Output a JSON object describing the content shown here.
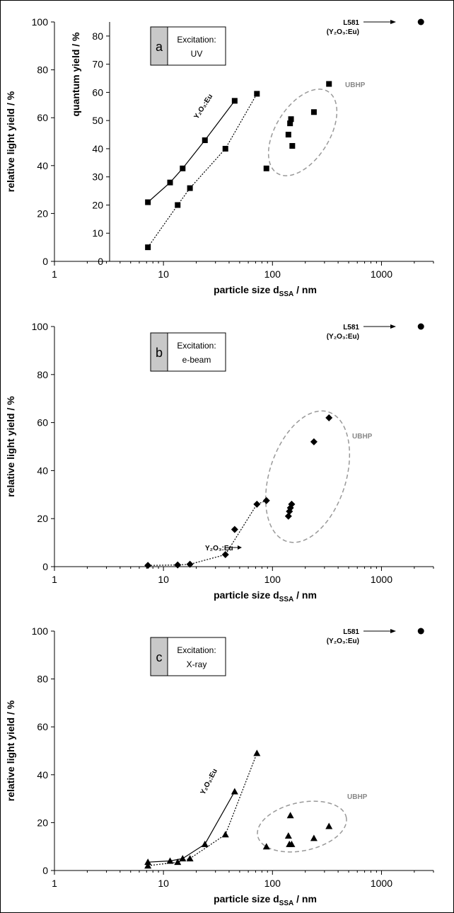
{
  "chart_data": [
    {
      "panel": "a",
      "type": "scatter",
      "xlabel": "particle size d_SSA / nm",
      "xlabel_main": "particle size d",
      "xlabel_sub": "SSA",
      "xlabel_tail": " / nm",
      "ylabel": "relative light yield / %",
      "ylabel2": "quantum yield / %",
      "x_scale": "log",
      "xlim": [
        1,
        3000
      ],
      "ylim": [
        0,
        100
      ],
      "ylim2": [
        0,
        85
      ],
      "x_ticks": [
        "1",
        "10",
        "100",
        "1000"
      ],
      "y_ticks": [
        "0",
        "20",
        "40",
        "60",
        "80",
        "100"
      ],
      "y2_ticks": [
        "0",
        "10",
        "20",
        "30",
        "40",
        "50",
        "60",
        "70",
        "80"
      ],
      "box_letter": "a",
      "box_title": "Excitation:",
      "box_value": "UV",
      "reference_label": "L581",
      "reference_sub": "(Y₂O₃:Eu)",
      "reference_point": {
        "x": 2300,
        "y": 100
      },
      "group_label": "UBHP",
      "series_label": "Y₂O₃:Eu",
      "series": [
        {
          "style": "solid",
          "marker": "square",
          "axis": "quantum",
          "x": [
            7.2,
            11.5,
            15,
            24,
            45
          ],
          "y": [
            21,
            28,
            33,
            43,
            57
          ]
        },
        {
          "style": "dotted",
          "marker": "square",
          "axis": "quantum",
          "x": [
            7.2,
            13.5,
            17.5,
            37,
            72
          ],
          "y": [
            5,
            20,
            26,
            40,
            59.5
          ]
        },
        {
          "style": "none",
          "marker": "square",
          "axis": "quantum",
          "x": [
            88,
            140,
            145,
            148,
            152,
            240,
            330
          ],
          "y": [
            33,
            45,
            49,
            50.5,
            41,
            53,
            63
          ]
        }
      ]
    },
    {
      "panel": "b",
      "type": "scatter",
      "xlabel": "particle size d_SSA / nm",
      "xlabel_main": "particle size d",
      "xlabel_sub": "SSA",
      "xlabel_tail": " / nm",
      "ylabel": "relative light yield / %",
      "x_scale": "log",
      "xlim": [
        1,
        3000
      ],
      "ylim": [
        0,
        100
      ],
      "x_ticks": [
        "1",
        "10",
        "100",
        "1000"
      ],
      "y_ticks": [
        "0",
        "20",
        "40",
        "60",
        "80",
        "100"
      ],
      "box_letter": "b",
      "box_title": "Excitation:",
      "box_value": "e-beam",
      "reference_label": "L581",
      "reference_sub": "(Y₂O₃:Eu)",
      "reference_point": {
        "x": 2300,
        "y": 100
      },
      "group_label": "UBHP",
      "series_label": "Y₂O₃:Eu",
      "series": [
        {
          "style": "dotted",
          "marker": "diamond",
          "x": [
            7.2,
            13.5,
            17.5,
            37,
            72,
            88
          ],
          "y": [
            0.5,
            0.7,
            1,
            5,
            26,
            27.5
          ]
        },
        {
          "style": "none",
          "marker": "diamond",
          "x": [
            45,
            140,
            143,
            146,
            150,
            240,
            330
          ],
          "y": [
            15.5,
            21,
            23,
            24.5,
            26,
            52,
            62
          ]
        }
      ]
    },
    {
      "panel": "c",
      "type": "scatter",
      "xlabel": "particle size d_SSA / nm",
      "xlabel_main": "particle size d",
      "xlabel_sub": "SSA",
      "xlabel_tail": " / nm",
      "ylabel": "relative light yield / %",
      "x_scale": "log",
      "xlim": [
        1,
        3000
      ],
      "ylim": [
        0,
        100
      ],
      "x_ticks": [
        "1",
        "10",
        "100",
        "1000"
      ],
      "y_ticks": [
        "0",
        "20",
        "40",
        "60",
        "80",
        "100"
      ],
      "box_letter": "c",
      "box_title": "Excitation:",
      "box_value": "X-ray",
      "reference_label": "L581",
      "reference_sub": "(Y₂O₃:Eu)",
      "reference_point": {
        "x": 2300,
        "y": 100
      },
      "group_label": "UBHP",
      "series_label": "Y₂O₃:Eu",
      "series": [
        {
          "style": "solid",
          "marker": "triangle",
          "x": [
            7.2,
            11.5,
            15,
            24,
            45
          ],
          "y": [
            3.5,
            4,
            5,
            11,
            33
          ]
        },
        {
          "style": "dotted",
          "marker": "triangle",
          "x": [
            7.2,
            13.5,
            17.5,
            37,
            72
          ],
          "y": [
            2,
            3.5,
            5,
            15,
            49
          ]
        },
        {
          "style": "none",
          "marker": "triangle",
          "x": [
            88,
            140,
            143,
            146,
            150,
            240,
            330
          ],
          "y": [
            10,
            14.5,
            11,
            23,
            11,
            13.5,
            18.5
          ]
        }
      ]
    }
  ]
}
